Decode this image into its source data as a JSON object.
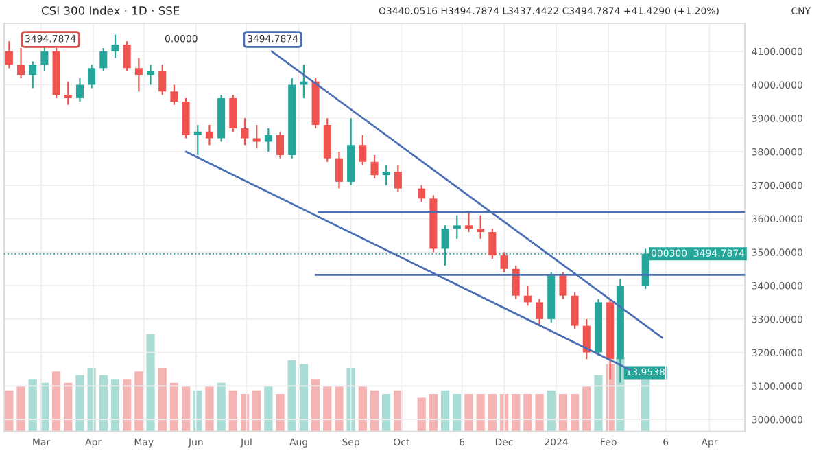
{
  "chart_data": {
    "type": "candlestick",
    "title": "CSI 300 Index · 1D · SSE",
    "annotations": [
      "O3440.0516 H3494.7874 L3437.4422 C3494.7874 +41.4290 (+1.20%)",
      "3494.7874",
      "0.0000",
      "3494.7874",
      "CNY"
    ],
    "x": [
      "2023-02-10",
      "2023-02-17",
      "2023-02-24",
      "2023-03-03",
      "2023-03-10",
      "2023-03-17",
      "2023-03-24",
      "2023-03-31",
      "2023-04-07",
      "2023-04-14",
      "2023-04-21",
      "2023-04-28",
      "2023-05-05",
      "2023-05-12",
      "2023-05-19",
      "2023-05-26",
      "2023-06-02",
      "2023-06-09",
      "2023-06-16",
      "2023-06-23",
      "2023-06-30",
      "2023-07-07",
      "2023-07-14",
      "2023-07-21",
      "2023-07-28",
      "2023-08-04",
      "2023-08-11",
      "2023-08-18",
      "2023-08-25",
      "2023-09-01",
      "2023-09-08",
      "2023-09-15",
      "2023-09-22",
      "2023-09-29",
      "2023-10-13",
      "2023-10-20",
      "2023-10-27",
      "2023-11-03",
      "2023-11-10",
      "2023-11-17",
      "2023-11-24",
      "2023-12-01",
      "2023-12-08",
      "2023-12-15",
      "2023-12-22",
      "2023-12-29",
      "2024-01-05",
      "2024-01-12",
      "2024-01-19",
      "2024-01-26",
      "2024-02-02",
      "2024-02-08",
      "2024-02-23"
    ],
    "ohlc": [
      [
        4100,
        4130,
        4050,
        4060
      ],
      [
        4060,
        4110,
        4020,
        4030
      ],
      [
        4030,
        4070,
        3990,
        4060
      ],
      [
        4060,
        4120,
        4040,
        4100
      ],
      [
        4100,
        4110,
        3960,
        3970
      ],
      [
        3970,
        4010,
        3940,
        3960
      ],
      [
        3960,
        4020,
        3950,
        4000
      ],
      [
        4000,
        4060,
        3990,
        4050
      ],
      [
        4050,
        4110,
        4040,
        4100
      ],
      [
        4100,
        4150,
        4080,
        4120
      ],
      [
        4120,
        4130,
        4040,
        4050
      ],
      [
        4050,
        4080,
        3980,
        4030
      ],
      [
        4030,
        4060,
        4000,
        4040
      ],
      [
        4040,
        4060,
        3970,
        3980
      ],
      [
        3980,
        4000,
        3940,
        3950
      ],
      [
        3950,
        3960,
        3840,
        3850
      ],
      [
        3850,
        3880,
        3790,
        3860
      ],
      [
        3860,
        3880,
        3820,
        3840
      ],
      [
        3840,
        3970,
        3830,
        3960
      ],
      [
        3960,
        3970,
        3860,
        3870
      ],
      [
        3870,
        3900,
        3820,
        3840
      ],
      [
        3840,
        3880,
        3810,
        3830
      ],
      [
        3830,
        3870,
        3800,
        3850
      ],
      [
        3850,
        3860,
        3780,
        3790
      ],
      [
        3790,
        4020,
        3780,
        4000
      ],
      [
        4000,
        4060,
        3960,
        4010
      ],
      [
        4010,
        4020,
        3870,
        3880
      ],
      [
        3880,
        3900,
        3770,
        3780
      ],
      [
        3780,
        3800,
        3690,
        3710
      ],
      [
        3710,
        3900,
        3700,
        3820
      ],
      [
        3820,
        3850,
        3760,
        3770
      ],
      [
        3770,
        3790,
        3720,
        3730
      ],
      [
        3730,
        3760,
        3700,
        3740
      ],
      [
        3740,
        3760,
        3680,
        3690
      ],
      [
        3690,
        3700,
        3650,
        3660
      ],
      [
        3660,
        3670,
        3500,
        3510
      ],
      [
        3510,
        3580,
        3460,
        3570
      ],
      [
        3570,
        3610,
        3540,
        3580
      ],
      [
        3580,
        3620,
        3560,
        3570
      ],
      [
        3570,
        3610,
        3540,
        3560
      ],
      [
        3560,
        3570,
        3480,
        3490
      ],
      [
        3490,
        3500,
        3440,
        3450
      ],
      [
        3450,
        3460,
        3360,
        3370
      ],
      [
        3370,
        3400,
        3340,
        3350
      ],
      [
        3350,
        3360,
        3280,
        3300
      ],
      [
        3300,
        3440,
        3290,
        3430
      ],
      [
        3430,
        3440,
        3360,
        3370
      ],
      [
        3370,
        3380,
        3270,
        3280
      ],
      [
        3280,
        3300,
        3180,
        3200
      ],
      [
        3200,
        3360,
        3190,
        3350
      ],
      [
        3350,
        3360,
        3120,
        3180
      ],
      [
        3180,
        3420,
        3110,
        3400
      ],
      [
        3400,
        3510,
        3390,
        3495
      ]
    ],
    "colors": [
      "#ef5350",
      "#ef5350",
      "#26a69a",
      "#26a69a",
      "#ef5350",
      "#ef5350",
      "#26a69a",
      "#26a69a",
      "#26a69a",
      "#26a69a",
      "#ef5350",
      "#ef5350",
      "#26a69a",
      "#ef5350",
      "#ef5350",
      "#ef5350",
      "#26a69a",
      "#ef5350",
      "#26a69a",
      "#ef5350",
      "#ef5350",
      "#ef5350",
      "#26a69a",
      "#ef5350",
      "#26a69a",
      "#26a69a",
      "#ef5350",
      "#ef5350",
      "#ef5350",
      "#26a69a",
      "#ef5350",
      "#ef5350",
      "#26a69a",
      "#ef5350",
      "#ef5350",
      "#ef5350",
      "#26a69a",
      "#26a69a",
      "#ef5350",
      "#ef5350",
      "#ef5350",
      "#ef5350",
      "#ef5350",
      "#ef5350",
      "#ef5350",
      "#26a69a",
      "#ef5350",
      "#ef5350",
      "#ef5350",
      "#26a69a",
      "#ef5350",
      "#26a69a",
      "#26a69a"
    ],
    "series": [
      {
        "type": "bar",
        "axis": "y2",
        "values": [
          11,
          12,
          14,
          13,
          16,
          13,
          15,
          17,
          15,
          14,
          14,
          16,
          26,
          17,
          13,
          12,
          11,
          12,
          13,
          11,
          10,
          11,
          12,
          10,
          19,
          18,
          14,
          12,
          12,
          17,
          12,
          11,
          10,
          11,
          9,
          10,
          11,
          10,
          10,
          10,
          10,
          10,
          10,
          10,
          10,
          11,
          10,
          10,
          12,
          15,
          18,
          20,
          13.9538
        ],
        "value_labels": [
          null,
          null,
          null,
          null,
          null,
          null,
          null,
          null,
          null,
          null,
          null,
          null,
          null,
          null,
          null,
          null,
          null,
          null,
          null,
          null,
          null,
          null,
          null,
          null,
          null,
          null,
          null,
          null,
          null,
          null,
          null,
          null,
          null,
          null,
          null,
          null,
          null,
          null,
          null,
          null,
          null,
          null,
          null,
          null,
          null,
          null,
          null,
          null,
          null,
          null,
          null,
          null,
          "13.9538"
        ],
        "colors": [
          "#f4b4b3",
          "#f4b4b3",
          "#a8dcd5",
          "#a8dcd5",
          "#f4b4b3",
          "#f4b4b3",
          "#a8dcd5",
          "#a8dcd5",
          "#a8dcd5",
          "#a8dcd5",
          "#f4b4b3",
          "#f4b4b3",
          "#a8dcd5",
          "#f4b4b3",
          "#f4b4b3",
          "#f4b4b3",
          "#a8dcd5",
          "#f4b4b3",
          "#a8dcd5",
          "#f4b4b3",
          "#f4b4b3",
          "#f4b4b3",
          "#a8dcd5",
          "#f4b4b3",
          "#a8dcd5",
          "#a8dcd5",
          "#f4b4b3",
          "#f4b4b3",
          "#f4b4b3",
          "#a8dcd5",
          "#f4b4b3",
          "#f4b4b3",
          "#a8dcd5",
          "#f4b4b3",
          "#f4b4b3",
          "#f4b4b3",
          "#a8dcd5",
          "#a8dcd5",
          "#f4b4b3",
          "#f4b4b3",
          "#f4b4b3",
          "#f4b4b3",
          "#f4b4b3",
          "#f4b4b3",
          "#f4b4b3",
          "#a8dcd5",
          "#f4b4b3",
          "#f4b4b3",
          "#f4b4b3",
          "#a8dcd5",
          "#f4b4b3",
          "#a8dcd5",
          "#a8dcd5"
        ]
      },
      {
        "type": "line",
        "color": "#4a6fb5",
        "x": [
          "2023-07-16",
          "2024-03-04"
        ],
        "values": [
          4100,
          3244
        ]
      },
      {
        "type": "line",
        "color": "#4a6fb5",
        "x": [
          "2023-05-26",
          "2024-02-14"
        ],
        "values": [
          3800,
          3148
        ]
      },
      {
        "type": "line",
        "color": "#4a6fb5",
        "x": [
          "2023-08-13",
          "2024-04-22"
        ],
        "values": [
          3620,
          3620
        ]
      },
      {
        "type": "line",
        "color": "#4a6fb5",
        "x": [
          "2023-08-11",
          "2024-04-22"
        ],
        "values": [
          3432,
          3432
        ]
      }
    ],
    "ref_lines": [
      {
        "axis": "y",
        "value": 3494.7874,
        "label": "000300  3494.7874",
        "color": "#26a69a",
        "line_style": "dotted"
      }
    ],
    "xlim": [
      "2023-02-07",
      "2024-04-22"
    ],
    "xticks": [
      {
        "value": "2023-03-01",
        "label": "Mar"
      },
      {
        "value": "2023-04-01",
        "label": "Apr"
      },
      {
        "value": "2023-05-01",
        "label": "May"
      },
      {
        "value": "2023-06-01",
        "label": "Jun"
      },
      {
        "value": "2023-07-01",
        "label": "Jul"
      },
      {
        "value": "2023-08-01",
        "label": "Aug"
      },
      {
        "value": "2023-09-01",
        "label": "Sep"
      },
      {
        "value": "2023-10-01",
        "label": "Oct"
      },
      {
        "value": "2023-11-06",
        "label": "6"
      },
      {
        "value": "2023-12-01",
        "label": "Dec"
      },
      {
        "value": "2024-01-01",
        "label": "2024"
      },
      {
        "value": "2024-02-01",
        "label": "Feb"
      },
      {
        "value": "2024-03-06",
        "label": "6"
      },
      {
        "value": "2024-04-01",
        "label": "Apr"
      }
    ],
    "ylim": [
      2964,
      4184
    ],
    "yticks": [
      {
        "value": 3000,
        "label": "3000.0000"
      },
      {
        "value": 3100,
        "label": "3100.0000"
      },
      {
        "value": 3200,
        "label": "3200.0000"
      },
      {
        "value": 3300,
        "label": "3300.0000"
      },
      {
        "value": 3400,
        "label": "3400.0000"
      },
      {
        "value": 3500,
        "label": "3500.0000"
      },
      {
        "value": 3600,
        "label": "3600.0000"
      },
      {
        "value": 3700,
        "label": "3700.0000"
      },
      {
        "value": 3800,
        "label": "3800.0000"
      },
      {
        "value": 3900,
        "label": "3900.0000"
      },
      {
        "value": 4000,
        "label": "4000.0000"
      },
      {
        "value": 4100,
        "label": "4100.0000"
      }
    ],
    "y2lim": [
      0,
      109
    ],
    "grid": true,
    "legend": false,
    "line_style": "solid"
  }
}
